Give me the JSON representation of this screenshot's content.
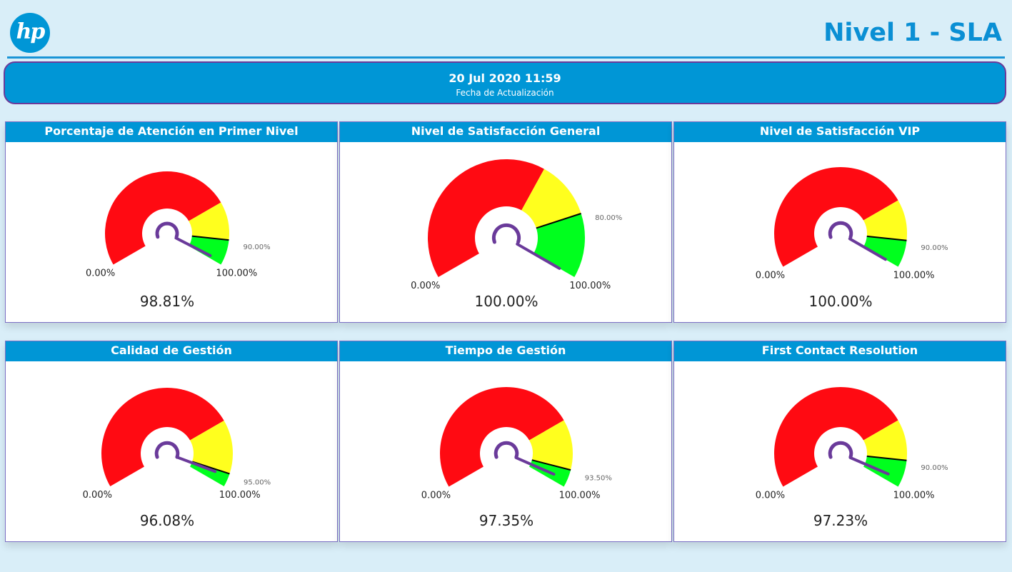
{
  "header": {
    "logo_text": "hp",
    "title": "Nivel 1 - SLA"
  },
  "banner": {
    "date": "20 Jul 2020 11:59",
    "label": "Fecha de Actualización"
  },
  "colors": {
    "red": "#ff0a12",
    "yellow": "#ffff1e",
    "green": "#00ff1e",
    "needle": "#6a3a9a",
    "accent": "#0096d6"
  },
  "gauges": [
    {
      "title": "Porcentaje de Atención en Primer Nivel",
      "value": 98.81,
      "value_label": "98.81%",
      "min_label": "0.00%",
      "max_label": "100.00%",
      "target": 90,
      "target_label": "90.00%",
      "red_end": 75,
      "yellow_end": 90
    },
    {
      "title": "Nivel de Satisfacción General",
      "value": 100,
      "value_label": "100.00%",
      "min_label": "0.00%",
      "max_label": "100.00%",
      "target": 80,
      "target_label": "80.00%",
      "red_end": 62,
      "yellow_end": 80
    },
    {
      "title": "Nivel de Satisfacción VIP",
      "value": 100,
      "value_label": "100.00%",
      "min_label": "0.00%",
      "max_label": "100.00%",
      "target": 90,
      "target_label": "90.00%",
      "red_end": 75,
      "yellow_end": 90
    },
    {
      "title": "Calidad de Gestión",
      "value": 96.08,
      "value_label": "96.08%",
      "min_label": "0.00%",
      "max_label": "100.00%",
      "target": 95,
      "target_label": "95.00%",
      "red_end": 75,
      "yellow_end": 95
    },
    {
      "title": "Tiempo de Gestión",
      "value": 97.35,
      "value_label": "97.35%",
      "min_label": "0.00%",
      "max_label": "100.00%",
      "target": 93.5,
      "target_label": "93.50%",
      "red_end": 75,
      "yellow_end": 93.5
    },
    {
      "title": "First Contact Resolution",
      "value": 97.23,
      "value_label": "97.23%",
      "min_label": "0.00%",
      "max_label": "100.00%",
      "target": 90,
      "target_label": "90.00%",
      "red_end": 75,
      "yellow_end": 90
    }
  ]
}
